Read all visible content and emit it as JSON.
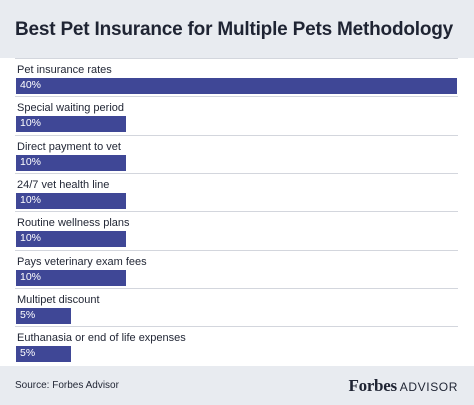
{
  "header": {
    "title": "Best Pet Insurance for Multiple Pets Methodology"
  },
  "chart_data": {
    "type": "bar",
    "orientation": "horizontal",
    "categories": [
      "Pet insurance rates",
      "Special waiting period",
      "Direct payment to vet",
      "24/7 vet health line",
      "Routine wellness plans",
      "Pays veterinary exam fees",
      "Multipet discount",
      "Euthanasia or end of life expenses"
    ],
    "values": [
      40,
      10,
      10,
      10,
      10,
      10,
      5,
      5
    ],
    "value_labels": [
      "40%",
      "10%",
      "10%",
      "10%",
      "10%",
      "10%",
      "5%",
      "5%"
    ],
    "xlim": [
      0,
      40
    ],
    "bar_color": "#3f4796",
    "grid": false,
    "legend": "none"
  },
  "footer": {
    "source": "Source: Forbes Advisor",
    "logo_forbes": "Forbes",
    "logo_advisor": "ADVISOR"
  },
  "colors": {
    "band_background": "#e8ebf0",
    "text": "#1f2433",
    "bar": "#3f4796"
  }
}
